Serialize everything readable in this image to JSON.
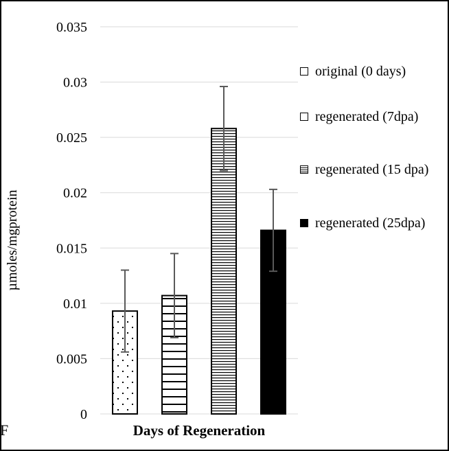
{
  "chart_data": {
    "type": "bar",
    "title": "",
    "xlabel": "Days of Regeneration",
    "ylabel": "µmoles/mgprotein",
    "ylim": [
      0,
      0.035
    ],
    "yticks": [
      "0",
      "0.005",
      "0.01",
      "0.015",
      "0.02",
      "0.025",
      "0.03",
      "0.035"
    ],
    "grid": "horizontal",
    "legend_position": "right",
    "categories": [
      "original (0 days)",
      "regenerated (7dpa)",
      "regenerated (15 dpa)",
      "regenerated (25dpa)"
    ],
    "values": [
      0.0093,
      0.0107,
      0.0258,
      0.0166
    ],
    "error": [
      0.0037,
      0.0038,
      0.0038,
      0.0037
    ],
    "patterns": [
      "dots",
      "wide-horizontal-lines",
      "narrow-horizontal-lines",
      "solid"
    ],
    "colors": {
      "bar_outline": "#000000",
      "error_bar": "#595959",
      "grid": "#d9d9d9",
      "solid_fill": "#000000"
    }
  },
  "legend": {
    "items": [
      {
        "label": "original (0 days)",
        "pattern": "dots"
      },
      {
        "label": "regenerated (7dpa)",
        "pattern": "wide-horizontal-lines"
      },
      {
        "label": "regenerated (15 dpa)",
        "pattern": "narrow-horizontal-lines"
      },
      {
        "label": "regenerated (25dpa)",
        "pattern": "solid"
      }
    ]
  },
  "stray_text": "F"
}
